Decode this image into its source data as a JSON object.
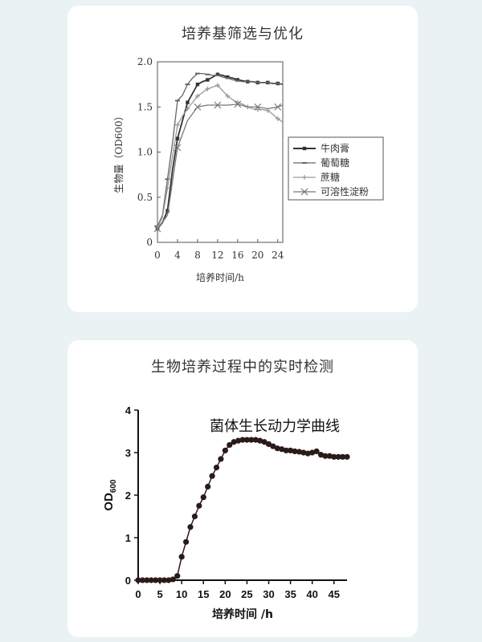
{
  "cards": [
    {
      "title": "培养基筛选与优化"
    },
    {
      "title": "生物培养过程中的实时检测"
    }
  ],
  "chart_data": [
    {
      "type": "line",
      "xlabel": "培养时间/h",
      "ylabel": "生物量（OD600）",
      "xlim": [
        0,
        25
      ],
      "ylim": [
        0,
        2.0
      ],
      "xticks": [
        "0",
        "4",
        "8",
        "12",
        "16",
        "20",
        "24"
      ],
      "yticks": [
        "0",
        "0.5",
        "1.0",
        "1.5",
        "2.0"
      ],
      "legend_position": "right",
      "series": [
        {
          "name": "牛肉膏",
          "marker": "square",
          "color": "#333333",
          "x": [
            0,
            1,
            2,
            3,
            4,
            5,
            6,
            7,
            8,
            9,
            10,
            11,
            12,
            13,
            14,
            15,
            16,
            17,
            18,
            19,
            20,
            21,
            22,
            23,
            24,
            25
          ],
          "y": [
            0.15,
            0.22,
            0.35,
            0.8,
            1.15,
            1.35,
            1.55,
            1.65,
            1.75,
            1.78,
            1.8,
            1.83,
            1.86,
            1.85,
            1.83,
            1.82,
            1.8,
            1.79,
            1.78,
            1.78,
            1.77,
            1.77,
            1.77,
            1.76,
            1.76,
            1.75
          ]
        },
        {
          "name": "葡萄糖",
          "marker": "dash",
          "color": "#666666",
          "x": [
            0,
            1,
            2,
            3,
            4,
            5,
            6,
            7,
            8,
            9,
            10,
            11,
            12,
            13,
            14,
            15,
            16,
            17,
            18,
            19,
            20,
            21,
            22,
            23,
            24,
            25
          ],
          "y": [
            0.18,
            0.3,
            0.7,
            1.1,
            1.57,
            1.63,
            1.75,
            1.82,
            1.87,
            1.87,
            1.86,
            1.85,
            1.85,
            1.83,
            1.82,
            1.8,
            1.79,
            1.78,
            1.78,
            1.78,
            1.77,
            1.77,
            1.77,
            1.76,
            1.76,
            1.75
          ]
        },
        {
          "name": "蔗糖",
          "marker": "plus",
          "color": "#999999",
          "x": [
            0,
            1,
            2,
            3,
            4,
            5,
            6,
            7,
            8,
            9,
            10,
            11,
            12,
            13,
            14,
            15,
            16,
            17,
            18,
            19,
            20,
            21,
            22,
            23,
            24,
            25
          ],
          "y": [
            0.16,
            0.28,
            0.6,
            0.95,
            1.3,
            1.4,
            1.48,
            1.55,
            1.62,
            1.66,
            1.7,
            1.72,
            1.74,
            1.68,
            1.62,
            1.58,
            1.55,
            1.53,
            1.5,
            1.48,
            1.47,
            1.47,
            1.46,
            1.42,
            1.37,
            1.33
          ]
        },
        {
          "name": "可溶性淀粉",
          "marker": "x",
          "color": "#777777",
          "x": [
            0,
            2,
            4,
            6,
            8,
            10,
            12,
            14,
            16,
            18,
            20,
            22,
            24,
            25
          ],
          "y": [
            0.15,
            0.3,
            1.05,
            1.35,
            1.5,
            1.52,
            1.52,
            1.52,
            1.53,
            1.5,
            1.5,
            1.48,
            1.5,
            1.52
          ]
        }
      ]
    },
    {
      "type": "scatter",
      "title": "菌体生长动力学曲线",
      "xlabel": "培养时间 /h",
      "ylabel": "OD",
      "ylabel_subscript": "600",
      "xlim": [
        0,
        48
      ],
      "ylim": [
        0,
        4
      ],
      "xticks": [
        "0",
        "5",
        "10",
        "15",
        "20",
        "25",
        "30",
        "35",
        "40",
        "45"
      ],
      "yticks": [
        "0",
        "1",
        "2",
        "3",
        "4"
      ],
      "color": "#2a1a1a",
      "series": [
        {
          "x": [
            0,
            1,
            2,
            3,
            4,
            5,
            6,
            7,
            8,
            9,
            10,
            11,
            12,
            13,
            14,
            15,
            16,
            17,
            18,
            19,
            20,
            21,
            22,
            23,
            24,
            25,
            26,
            27,
            28,
            29,
            30,
            31,
            32,
            33,
            34,
            35,
            36,
            37,
            38,
            39,
            40,
            41,
            42,
            43,
            44,
            45,
            46,
            47,
            48
          ],
          "y": [
            0.0,
            0.0,
            0.0,
            0.0,
            0.0,
            0.0,
            0.0,
            0.0,
            0.02,
            0.1,
            0.55,
            0.9,
            1.25,
            1.5,
            1.75,
            1.95,
            2.2,
            2.45,
            2.65,
            2.85,
            3.05,
            3.18,
            3.25,
            3.28,
            3.3,
            3.3,
            3.3,
            3.3,
            3.28,
            3.25,
            3.2,
            3.15,
            3.1,
            3.08,
            3.05,
            3.05,
            3.03,
            3.02,
            3.0,
            2.98,
            3.0,
            3.03,
            2.95,
            2.92,
            2.92,
            2.9,
            2.9,
            2.9,
            2.9
          ]
        }
      ]
    }
  ]
}
